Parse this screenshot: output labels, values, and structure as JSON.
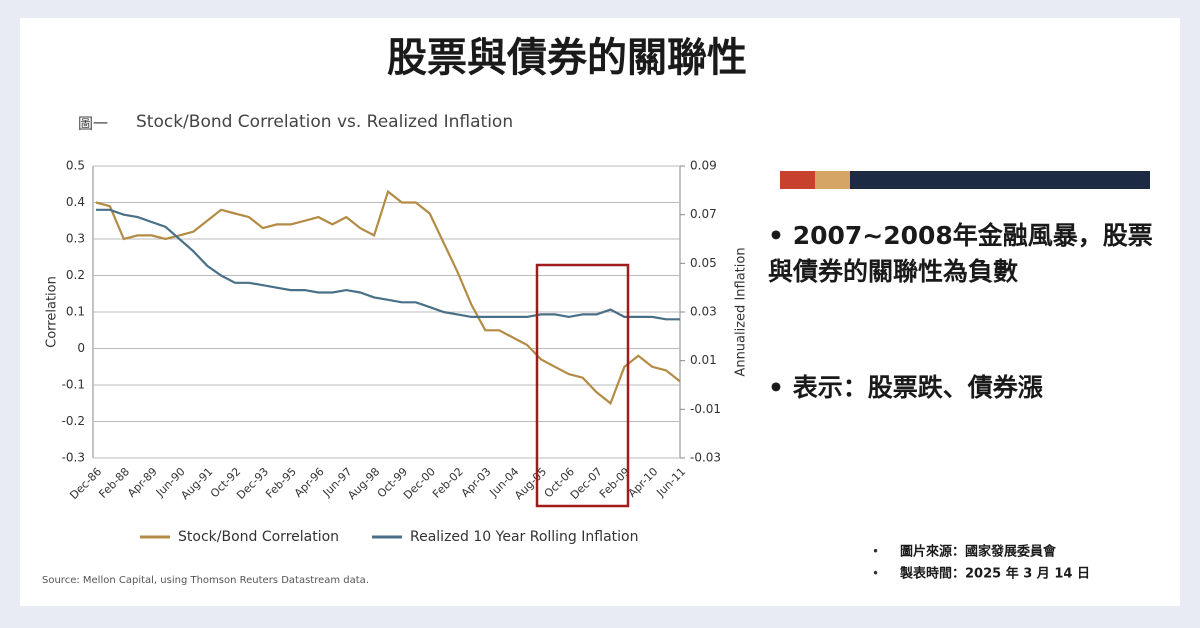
{
  "title": "股票與債券的關聯性",
  "bullets": [
    "2007~2008年金融風暴，股票與債券的關聯性為負數",
    "表示：股票跌、債券漲"
  ],
  "notes": [
    "圖片來源：國家發展委員會",
    "製表時間：2025 年 3 月 14 日"
  ],
  "figure_label": "圖一",
  "source": "Source: Mellon Capital, using Thomson Reuters Datastream data.",
  "chart_data": {
    "type": "line",
    "title": "Stock/Bond Correlation vs. Realized Inflation",
    "y_label": "Correlation",
    "y2_label": "Annualized Inflation",
    "categories": [
      "Dec-86",
      null,
      "Feb-88",
      null,
      "Apr-89",
      null,
      "Jun-90",
      null,
      "Aug-91",
      null,
      "Oct-92",
      null,
      "Dec-93",
      null,
      "Feb-95",
      null,
      "Apr-96",
      null,
      "Jun-97",
      null,
      "Aug-98",
      null,
      "Oct-99",
      null,
      "Dec-00",
      null,
      "Feb-02",
      null,
      "Apr-03",
      null,
      "Jun-04",
      null,
      "Aug-05",
      null,
      "Oct-06",
      null,
      "Dec-07",
      null,
      "Feb-09",
      null,
      "Apr-10",
      null,
      "Jun-11"
    ],
    "series": [
      {
        "name": "Stock/Bond Correlation",
        "color": "#b38b45",
        "axis": "y",
        "values": [
          0.4,
          0.39,
          0.3,
          0.31,
          0.31,
          0.3,
          0.31,
          0.32,
          0.35,
          0.38,
          0.37,
          0.36,
          0.33,
          0.34,
          0.34,
          0.35,
          0.36,
          0.34,
          0.36,
          0.33,
          0.31,
          0.43,
          0.4,
          0.4,
          0.37,
          0.29,
          0.21,
          0.12,
          0.05,
          0.05,
          0.03,
          0.01,
          -0.03,
          -0.05,
          -0.07,
          -0.08,
          -0.12,
          -0.15,
          -0.05,
          -0.02,
          -0.05,
          -0.06,
          -0.09
        ]
      },
      {
        "name": "Realized 10 Year Rolling Inflation",
        "color": "#4a7088",
        "axis": "y2",
        "values": [
          0.072,
          0.072,
          0.07,
          0.069,
          0.067,
          0.065,
          0.06,
          0.055,
          0.049,
          0.045,
          0.042,
          0.042,
          0.041,
          0.04,
          0.039,
          0.039,
          0.038,
          0.038,
          0.039,
          0.038,
          0.036,
          0.035,
          0.034,
          0.034,
          0.032,
          0.03,
          0.029,
          0.028,
          0.028,
          0.028,
          0.028,
          0.028,
          0.029,
          0.029,
          0.028,
          0.029,
          0.029,
          0.031,
          0.028,
          0.028,
          0.028,
          0.027,
          0.027
        ]
      }
    ],
    "ylim": [
      -0.3,
      0.5
    ],
    "yticks": [
      0.5,
      0.4,
      0.3,
      0.2,
      0.1,
      0,
      -0.1,
      -0.2,
      -0.3
    ],
    "y2lim": [
      -0.03,
      0.09
    ],
    "y2ticks": [
      0.09,
      0.07,
      0.05,
      0.03,
      0.01,
      -0.01,
      -0.03
    ],
    "grid": true
  }
}
